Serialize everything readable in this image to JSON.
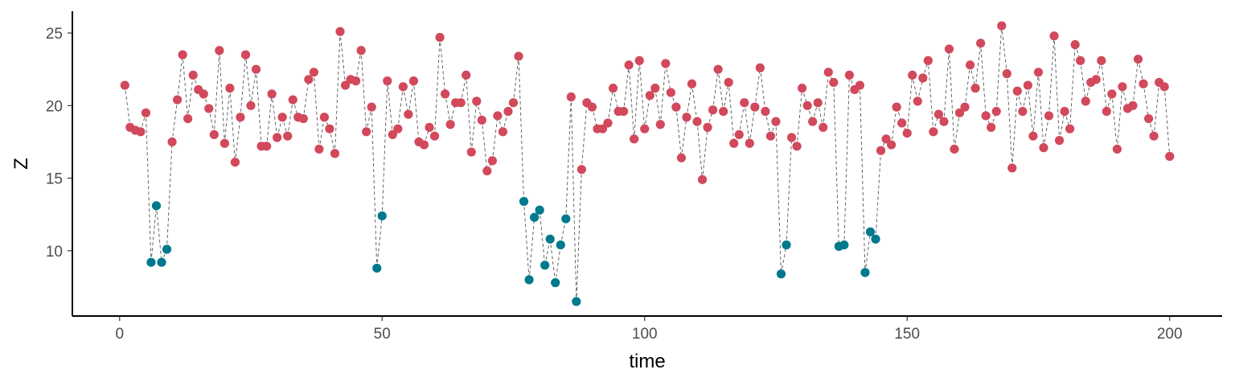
{
  "chart_data": {
    "type": "scatter",
    "xlabel": "time",
    "ylabel": "Z",
    "xlim": [
      -9,
      210
    ],
    "ylim": [
      5.5,
      26.5
    ],
    "xticks": [
      0,
      50,
      100,
      150,
      200
    ],
    "yticks": [
      10,
      15,
      20,
      25
    ],
    "grid": false,
    "legend": "none",
    "connector": "dashed grey line through all points in time order",
    "colors": {
      "high": "#D1495B",
      "low": "#00798C",
      "line": "#555555",
      "axis": "#000000"
    },
    "series": [
      {
        "name": "",
        "x": [
          1,
          2,
          3,
          4,
          5,
          6,
          7,
          8,
          9,
          10,
          11,
          12,
          13,
          14,
          15,
          16,
          17,
          18,
          19,
          20,
          21,
          22,
          23,
          24,
          25,
          26,
          27,
          28,
          29,
          30,
          31,
          32,
          33,
          34,
          35,
          36,
          37,
          38,
          39,
          40,
          41,
          42,
          43,
          44,
          45,
          46,
          47,
          48,
          49,
          50,
          51,
          52,
          53,
          54,
          55,
          56,
          57,
          58,
          59,
          60,
          61,
          62,
          63,
          64,
          65,
          66,
          67,
          68,
          69,
          70,
          71,
          72,
          73,
          74,
          75,
          76,
          77,
          78,
          79,
          80,
          81,
          82,
          83,
          84,
          85,
          86,
          87,
          88,
          89,
          90,
          91,
          92,
          93,
          94,
          95,
          96,
          97,
          98,
          99,
          100,
          101,
          102,
          103,
          104,
          105,
          106,
          107,
          108,
          109,
          110,
          111,
          112,
          113,
          114,
          115,
          116,
          117,
          118,
          119,
          120,
          121,
          122,
          123,
          124,
          125,
          126,
          127,
          128,
          129,
          130,
          131,
          132,
          133,
          134,
          135,
          136,
          137,
          138,
          139,
          140,
          141,
          142,
          143,
          144,
          145,
          146,
          147,
          148,
          149,
          150,
          151,
          152,
          153,
          154,
          155,
          156,
          157,
          158,
          159,
          160,
          161,
          162,
          163,
          164,
          165,
          166,
          167,
          168,
          169,
          170,
          171,
          172,
          173,
          174,
          175,
          176,
          177,
          178,
          179,
          180,
          181,
          182,
          183,
          184,
          185,
          186,
          187,
          188,
          189,
          190,
          191,
          192,
          193,
          194,
          195,
          196,
          197,
          198,
          199,
          200
        ],
        "y": [
          21.4,
          18.5,
          18.3,
          18.2,
          19.5,
          9.2,
          13.1,
          9.2,
          10.1,
          17.5,
          20.4,
          23.5,
          19.1,
          22.1,
          21.1,
          20.8,
          19.8,
          18.0,
          23.8,
          17.4,
          21.2,
          16.1,
          19.2,
          23.5,
          20.0,
          22.5,
          17.2,
          17.2,
          20.8,
          17.8,
          19.2,
          17.9,
          20.4,
          19.2,
          19.1,
          21.8,
          22.3,
          17.0,
          19.2,
          18.4,
          16.7,
          25.1,
          21.4,
          21.8,
          21.7,
          23.8,
          18.2,
          19.9,
          8.8,
          12.4,
          21.7,
          18.0,
          18.4,
          21.3,
          19.4,
          21.7,
          17.5,
          17.3,
          18.5,
          17.9,
          24.7,
          20.8,
          18.7,
          20.2,
          20.2,
          22.1,
          16.8,
          20.3,
          19.0,
          15.5,
          16.2,
          19.3,
          18.2,
          19.6,
          20.2,
          23.4,
          13.4,
          8.0,
          12.3,
          12.8,
          9.0,
          10.8,
          7.8,
          10.4,
          12.2,
          20.6,
          6.5,
          15.6,
          20.2,
          19.9,
          18.4,
          18.4,
          18.8,
          21.2,
          19.6,
          19.6,
          22.8,
          17.7,
          23.1,
          18.4,
          20.7,
          21.2,
          18.7,
          22.9,
          20.9,
          19.9,
          16.4,
          19.2,
          21.5,
          18.9,
          14.9,
          18.5,
          19.7,
          22.5,
          19.6,
          21.6,
          17.4,
          18.0,
          20.2,
          17.4,
          19.9,
          22.6,
          19.6,
          17.9,
          18.9,
          8.4,
          10.4,
          17.8,
          17.2,
          21.2,
          20.0,
          18.9,
          20.2,
          18.5,
          22.3,
          21.6,
          10.3,
          10.4,
          22.1,
          21.1,
          21.4,
          8.5,
          11.3,
          10.8,
          16.9,
          17.7,
          17.3,
          19.9,
          18.8,
          18.1,
          22.1,
          20.3,
          21.9,
          23.1,
          18.2,
          19.4,
          18.9,
          23.9,
          17.0,
          19.5,
          19.9,
          22.8,
          21.2,
          24.3,
          19.3,
          18.5,
          19.6,
          25.5,
          22.2,
          15.7,
          21.0,
          19.6,
          21.4,
          17.9,
          22.3,
          17.1,
          19.3,
          24.8,
          17.6,
          19.6,
          18.4,
          24.2,
          23.1,
          20.3,
          21.6,
          21.8,
          23.1,
          19.6,
          20.8,
          17.0,
          21.3,
          19.8,
          20.0,
          23.2,
          21.5,
          19.1,
          17.9,
          21.6,
          21.3,
          16.5
        ]
      }
    ],
    "color_rule": "points with Z below 14 are teal, all others are red"
  }
}
